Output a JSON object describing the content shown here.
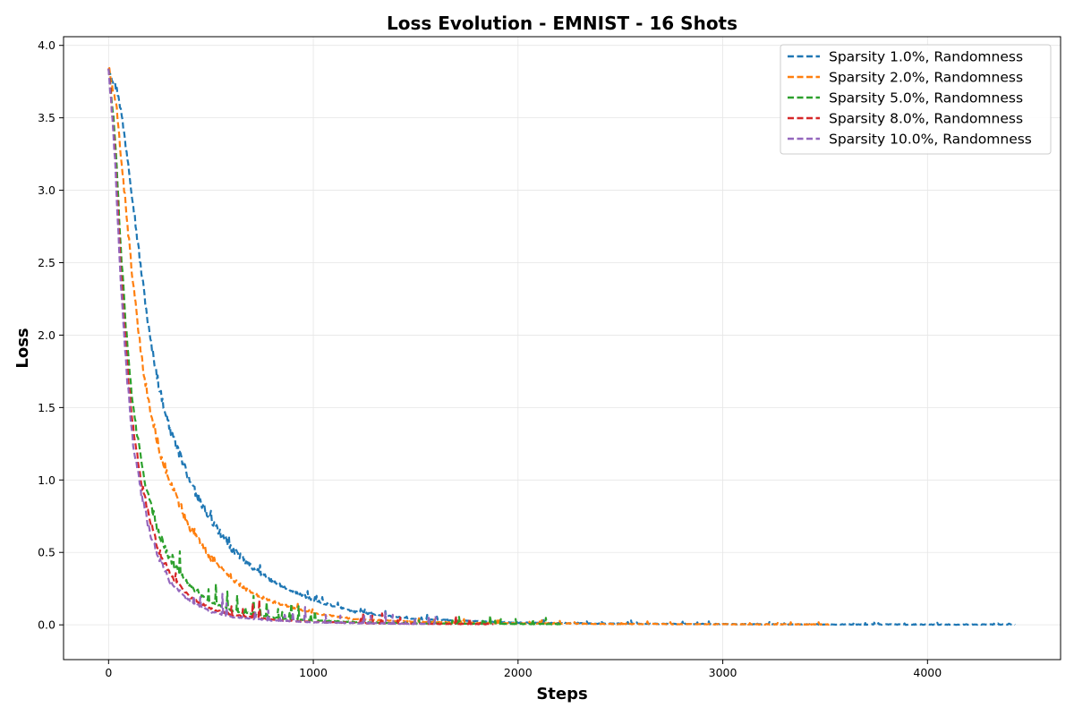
{
  "chart_data": {
    "type": "line",
    "title": "Loss Evolution - EMNIST - 16 Shots",
    "xlabel": "Steps",
    "ylabel": "Loss",
    "xlim": [
      -220,
      4650
    ],
    "ylim": [
      -0.24,
      4.06
    ],
    "xticks": [
      0,
      1000,
      2000,
      3000,
      4000
    ],
    "yticks": [
      0.0,
      0.5,
      1.0,
      1.5,
      2.0,
      2.5,
      3.0,
      3.5,
      4.0
    ],
    "xtick_labels": [
      "0",
      "1000",
      "2000",
      "3000",
      "4000"
    ],
    "ytick_labels": [
      "0.0",
      "0.5",
      "1.0",
      "1.5",
      "2.0",
      "2.5",
      "3.0",
      "3.5",
      "4.0"
    ],
    "grid": true,
    "legend_position": "top-right",
    "line_style": "dashed",
    "series": [
      {
        "name": "Sparsity 1.0%, Randomness",
        "color": "#1f77b4",
        "x": [
          0,
          50,
          100,
          150,
          200,
          250,
          300,
          400,
          500,
          600,
          700,
          800,
          1000,
          1200,
          1500,
          2000,
          2500,
          3000,
          3500,
          4000,
          4430
        ],
        "y": [
          3.85,
          3.65,
          3.15,
          2.55,
          2.0,
          1.62,
          1.35,
          0.98,
          0.72,
          0.53,
          0.4,
          0.3,
          0.17,
          0.09,
          0.04,
          0.015,
          0.008,
          0.005,
          0.003,
          0.002,
          0.002
        ]
      },
      {
        "name": "Sparsity 2.0%, Randomness",
        "color": "#ff7f0e",
        "x": [
          0,
          40,
          80,
          120,
          160,
          200,
          250,
          300,
          400,
          500,
          600,
          700,
          800,
          1000,
          1200,
          1500,
          2000,
          2500,
          3000,
          3520
        ],
        "y": [
          3.85,
          3.55,
          2.95,
          2.35,
          1.85,
          1.5,
          1.2,
          0.98,
          0.66,
          0.46,
          0.32,
          0.22,
          0.16,
          0.08,
          0.04,
          0.02,
          0.01,
          0.006,
          0.004,
          0.003
        ]
      },
      {
        "name": "Sparsity 5.0%, Randomness",
        "color": "#2ca02c",
        "x": [
          0,
          30,
          60,
          90,
          120,
          160,
          200,
          250,
          300,
          400,
          500,
          600,
          800,
          1000,
          1300,
          1600,
          2000,
          2220
        ],
        "y": [
          3.85,
          3.4,
          2.6,
          1.95,
          1.5,
          1.12,
          0.85,
          0.62,
          0.45,
          0.26,
          0.16,
          0.1,
          0.05,
          0.03,
          0.015,
          0.01,
          0.006,
          0.005
        ]
      },
      {
        "name": "Sparsity 8.0%, Randomness",
        "color": "#d62728",
        "x": [
          0,
          30,
          60,
          90,
          120,
          160,
          200,
          250,
          300,
          400,
          500,
          600,
          800,
          1000,
          1300,
          1600,
          1880
        ],
        "y": [
          3.85,
          3.3,
          2.45,
          1.8,
          1.35,
          0.98,
          0.72,
          0.5,
          0.35,
          0.19,
          0.11,
          0.07,
          0.035,
          0.02,
          0.01,
          0.007,
          0.005
        ]
      },
      {
        "name": "Sparsity 10.0%, Randomness",
        "color": "#9467bd",
        "x": [
          0,
          30,
          60,
          90,
          120,
          160,
          200,
          250,
          300,
          400,
          500,
          600,
          800,
          1000,
          1200,
          1400,
          1600
        ],
        "y": [
          3.85,
          3.25,
          2.35,
          1.7,
          1.25,
          0.9,
          0.65,
          0.45,
          0.3,
          0.16,
          0.09,
          0.055,
          0.03,
          0.018,
          0.012,
          0.008,
          0.006
        ]
      }
    ]
  }
}
